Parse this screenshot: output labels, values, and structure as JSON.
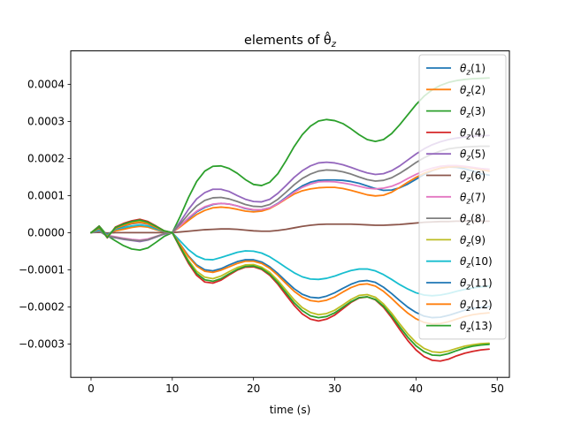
{
  "chart_data": {
    "type": "line",
    "title": "elements of θ̂_z",
    "xlabel": "time (s)",
    "ylabel": "",
    "xlim": [
      -2.5,
      51.5
    ],
    "ylim": [
      -0.00039,
      0.00049
    ],
    "xticks": [
      0,
      10,
      20,
      30,
      40,
      50
    ],
    "yticks": [
      -0.0003,
      -0.0002,
      -0.0001,
      0.0,
      0.0001,
      0.0002,
      0.0003,
      0.0004
    ],
    "ytick_labels": [
      "−0.0003",
      "−0.0002",
      "−0.0001",
      "0.0000",
      "0.0001",
      "0.0002",
      "0.0003",
      "0.0004"
    ],
    "grid": false,
    "legend_position": "upper right",
    "x": [
      0,
      1,
      2,
      3,
      4,
      5,
      6,
      7,
      8,
      9,
      10,
      11,
      12,
      13,
      14,
      15,
      16,
      17,
      18,
      19,
      20,
      21,
      22,
      23,
      24,
      25,
      26,
      27,
      28,
      29,
      30,
      31,
      32,
      33,
      34,
      35,
      36,
      37,
      38,
      39,
      40,
      41,
      42,
      43,
      44,
      45,
      46,
      47,
      48,
      49
    ],
    "series": [
      {
        "name": "θz(1)",
        "color": "#1f77b4",
        "values": [
          0,
          4e-06,
          -6e-06,
          6e-06,
          1e-05,
          1.5e-05,
          1.9e-05,
          1.6e-05,
          8e-06,
          2e-06,
          0,
          1.8e-05,
          3.8e-05,
          5.6e-05,
          6.8e-05,
          7.6e-05,
          7.9e-05,
          7.7e-05,
          7.2e-05,
          6.5e-05,
          6.1e-05,
          6.2e-05,
          6.7e-05,
          7.9e-05,
          9.5e-05,
          0.000112,
          0.000126,
          0.000136,
          0.000141,
          0.000142,
          0.000142,
          0.000141,
          0.000138,
          0.000133,
          0.000126,
          0.000119,
          0.000114,
          0.000115,
          0.000121,
          0.000131,
          0.000144,
          0.000157,
          0.000167,
          0.000174,
          0.000177,
          0.000176,
          0.000172,
          0.000166,
          0.000159,
          0.000155
        ]
      },
      {
        "name": "θz(2)",
        "color": "#ff7f0e",
        "values": [
          0,
          3e-06,
          -5e-06,
          5e-06,
          9e-06,
          1.4e-05,
          1.7e-05,
          1.5e-05,
          8e-06,
          2e-06,
          0,
          1.6e-05,
          3.3e-05,
          4.9e-05,
          6e-05,
          6.7e-05,
          6.9e-05,
          6.7e-05,
          6.3e-05,
          5.8e-05,
          5.6e-05,
          5.8e-05,
          6.5e-05,
          7.7e-05,
          9.1e-05,
          0.000104,
          0.000113,
          0.000118,
          0.000121,
          0.000122,
          0.000122,
          0.000119,
          0.000114,
          0.000108,
          0.000102,
          9.9e-05,
          0.000101,
          0.000109,
          0.000122,
          0.000136,
          0.000149,
          0.00016,
          0.000168,
          0.000174,
          0.000177,
          0.000178,
          0.000177,
          0.000174,
          0.00017,
          0.000166
        ]
      },
      {
        "name": "θz(3)",
        "color": "#2ca02c",
        "values": [
          0,
          1.8e-05,
          -8e-06,
          -2.2e-05,
          -3.5e-05,
          -4.4e-05,
          -4.7e-05,
          -4.1e-05,
          -2.6e-05,
          -1e-05,
          0,
          4.5e-05,
          9.5e-05,
          0.000138,
          0.000166,
          0.000179,
          0.00018,
          0.000173,
          0.00016,
          0.000143,
          0.00013,
          0.000127,
          0.000136,
          0.000159,
          0.000194,
          0.000232,
          0.000264,
          0.000287,
          0.000301,
          0.000305,
          0.000302,
          0.000294,
          0.00028,
          0.000264,
          0.000251,
          0.000246,
          0.000251,
          0.000267,
          0.000291,
          0.000318,
          0.000345,
          0.000368,
          0.000385,
          0.000397,
          0.000405,
          0.00041,
          0.000413,
          0.000415,
          0.000416,
          0.000417
        ]
      },
      {
        "name": "θz(4)",
        "color": "#d62728",
        "values": [
          0,
          1.6e-05,
          -1.4e-05,
          1.5e-05,
          2.5e-05,
          3.2e-05,
          3.6e-05,
          3e-05,
          1.8e-05,
          5e-06,
          0,
          -4.2e-05,
          -8.3e-05,
          -0.000115,
          -0.000133,
          -0.000136,
          -0.000128,
          -0.000114,
          -0.000101,
          -9.3e-05,
          -9.2e-05,
          -9.9e-05,
          -0.000115,
          -0.000139,
          -0.000168,
          -0.000196,
          -0.000219,
          -0.000233,
          -0.000238,
          -0.000233,
          -0.000222,
          -0.000205,
          -0.000188,
          -0.000176,
          -0.000173,
          -0.000181,
          -0.000201,
          -0.000229,
          -0.000261,
          -0.000291,
          -0.000316,
          -0.000334,
          -0.000344,
          -0.000346,
          -0.000341,
          -0.000332,
          -0.000325,
          -0.00032,
          -0.000316,
          -0.000314
        ]
      },
      {
        "name": "θz(5)",
        "color": "#9467bd",
        "values": [
          0,
          5e-06,
          -1e-05,
          -1.4e-05,
          -1.8e-05,
          -2.1e-05,
          -2.4e-05,
          -2e-05,
          -1.2e-05,
          -4e-06,
          0,
          3e-05,
          6.3e-05,
          9.1e-05,
          0.000108,
          0.000117,
          0.000117,
          0.000111,
          0.0001,
          9e-05,
          8.4e-05,
          8.3e-05,
          9e-05,
          0.000106,
          0.000127,
          0.000149,
          0.000167,
          0.00018,
          0.000188,
          0.00019,
          0.000188,
          0.000183,
          0.000176,
          0.000168,
          0.000161,
          0.000157,
          0.000159,
          0.000167,
          0.00018,
          0.000196,
          0.000212,
          0.000226,
          0.000237,
          0.000245,
          0.000251,
          0.000255,
          0.000258,
          0.00026,
          0.000261,
          0.000262
        ]
      },
      {
        "name": "θz(6)",
        "color": "#8c564b",
        "values": [
          0,
          1e-06,
          -1e-06,
          0,
          0,
          0,
          0,
          0,
          0,
          0,
          0,
          2e-06,
          4e-06,
          6e-06,
          8e-06,
          9e-06,
          1e-05,
          1e-05,
          9e-06,
          7e-06,
          5e-06,
          4e-06,
          4e-06,
          6e-06,
          9e-06,
          1.3e-05,
          1.7e-05,
          2e-05,
          2.2e-05,
          2.3e-05,
          2.3e-05,
          2.3e-05,
          2.3e-05,
          2.2e-05,
          2.1e-05,
          2e-05,
          2e-05,
          2.1e-05,
          2.2e-05,
          2.4e-05,
          2.6e-05,
          2.8e-05,
          2.9e-05,
          3e-05,
          3e-05,
          3.1e-05,
          3.1e-05,
          3.1e-05,
          3.1e-05,
          3.1e-05
        ]
      },
      {
        "name": "θz(7)",
        "color": "#e377c2",
        "values": [
          0,
          4e-06,
          -7e-06,
          -1.1e-05,
          -1.5e-05,
          -1.8e-05,
          -2e-05,
          -1.7e-05,
          -1e-05,
          -3e-06,
          0,
          1.9e-05,
          4e-05,
          5.8e-05,
          7e-05,
          7.7e-05,
          7.9e-05,
          7.7e-05,
          7.2e-05,
          6.6e-05,
          6.2e-05,
          6.2e-05,
          6.7e-05,
          7.8e-05,
          9.3e-05,
          0.000109,
          0.000122,
          0.000131,
          0.000137,
          0.000138,
          0.000137,
          0.000134,
          0.00013,
          0.000125,
          0.00012,
          0.000118,
          0.00012,
          0.000125,
          0.000134,
          0.000146,
          0.000157,
          0.000167,
          0.000174,
          0.000179,
          0.000181,
          0.000181,
          0.000179,
          0.000176,
          0.000173,
          0.000171
        ]
      },
      {
        "name": "θz(8)",
        "color": "#7f7f7f",
        "values": [
          0,
          4e-06,
          -9e-06,
          -1.3e-05,
          -1.7e-05,
          -2e-05,
          -2.2e-05,
          -1.9e-05,
          -1.1e-05,
          -3e-06,
          0,
          2.4e-05,
          5e-05,
          7.2e-05,
          8.7e-05,
          9.4e-05,
          9.5e-05,
          9.1e-05,
          8.4e-05,
          7.6e-05,
          7.1e-05,
          7e-05,
          7.6e-05,
          9e-05,
          0.000109,
          0.000129,
          0.000146,
          0.000158,
          0.000166,
          0.000169,
          0.000168,
          0.000164,
          0.000158,
          0.00015,
          0.000143,
          0.000139,
          0.000141,
          0.000148,
          0.00016,
          0.000174,
          0.000189,
          0.000202,
          0.000212,
          0.00022,
          0.000226,
          0.000229,
          0.000231,
          0.000232,
          0.000233,
          0.000233
        ]
      },
      {
        "name": "θz(9)",
        "color": "#bcbd22",
        "values": [
          0,
          1.4e-05,
          -1.2e-05,
          1.3e-05,
          2.2e-05,
          2.8e-05,
          3.2e-05,
          2.6e-05,
          1.6e-05,
          4e-06,
          0,
          -3.8e-05,
          -7.5e-05,
          -0.000104,
          -0.00012,
          -0.000124,
          -0.000117,
          -0.000105,
          -9.4e-05,
          -8.7e-05,
          -8.6e-05,
          -9.3e-05,
          -0.000107,
          -0.000129,
          -0.000155,
          -0.000181,
          -0.000202,
          -0.000215,
          -0.000221,
          -0.000218,
          -0.000209,
          -0.000195,
          -0.00018,
          -0.000169,
          -0.000167,
          -0.000174,
          -0.000192,
          -0.000217,
          -0.000246,
          -0.000273,
          -0.000296,
          -0.000312,
          -0.000321,
          -0.000323,
          -0.000319,
          -0.000312,
          -0.000306,
          -0.000302,
          -0.000299,
          -0.000298
        ]
      },
      {
        "name": "θz(10)",
        "color": "#17becf",
        "values": [
          0,
          8e-06,
          -6e-06,
          9e-06,
          1.4e-05,
          1.8e-05,
          2.1e-05,
          1.8e-05,
          1e-05,
          3e-06,
          0,
          -2.3e-05,
          -4.6e-05,
          -6.3e-05,
          -7.2e-05,
          -7.3e-05,
          -6.7e-05,
          -6e-05,
          -5.3e-05,
          -4.9e-05,
          -5e-05,
          -5.5e-05,
          -6.5e-05,
          -7.9e-05,
          -9.4e-05,
          -0.000108,
          -0.000119,
          -0.000125,
          -0.000126,
          -0.000123,
          -0.000117,
          -0.000109,
          -0.000102,
          -9.8e-05,
          -9.8e-05,
          -0.000103,
          -0.000113,
          -0.000126,
          -0.00014,
          -0.000152,
          -0.000162,
          -0.000168,
          -0.00017,
          -0.000168,
          -0.000164,
          -0.000158,
          -0.000153,
          -0.000149,
          -0.000146,
          -0.000144
        ]
      },
      {
        "name": "θz(11)",
        "color": "#1f77b4",
        "values": [
          0,
          1.1e-05,
          -9e-06,
          1.1e-05,
          1.8e-05,
          2.4e-05,
          2.7e-05,
          2.3e-05,
          1.3e-05,
          4e-06,
          0,
          -3.2e-05,
          -6.3e-05,
          -8.7e-05,
          -0.0001,
          -0.000103,
          -9.7e-05,
          -8.7e-05,
          -7.8e-05,
          -7.3e-05,
          -7.3e-05,
          -7.9e-05,
          -9.2e-05,
          -0.00011,
          -0.000131,
          -0.000151,
          -0.000166,
          -0.000174,
          -0.000176,
          -0.000171,
          -0.000162,
          -0.00015,
          -0.000139,
          -0.000131,
          -0.000129,
          -0.000134,
          -0.000147,
          -0.000164,
          -0.000183,
          -0.000201,
          -0.000215,
          -0.000225,
          -0.000229,
          -0.000228,
          -0.000223,
          -0.000216,
          -0.000209,
          -0.000204,
          -0.000201,
          -0.000199
        ]
      },
      {
        "name": "θz(12)",
        "color": "#ff7f0e",
        "values": [
          0,
          1.2e-05,
          -1e-05,
          1.2e-05,
          1.9e-05,
          2.5e-05,
          2.8e-05,
          2.4e-05,
          1.4e-05,
          4e-06,
          0,
          -3.3e-05,
          -6.5e-05,
          -9e-05,
          -0.000104,
          -0.000107,
          -0.000101,
          -9.2e-05,
          -8.3e-05,
          -7.7e-05,
          -7.7e-05,
          -8.3e-05,
          -9.6e-05,
          -0.000115,
          -0.000137,
          -0.000158,
          -0.000174,
          -0.000183,
          -0.000186,
          -0.000182,
          -0.000173,
          -0.00016,
          -0.000148,
          -0.00014,
          -0.000138,
          -0.000144,
          -0.000158,
          -0.000177,
          -0.000198,
          -0.000217,
          -0.000232,
          -0.000242,
          -0.000246,
          -0.000245,
          -0.00024,
          -0.000233,
          -0.000226,
          -0.000221,
          -0.000218,
          -0.000216
        ]
      },
      {
        "name": "θz(13)",
        "color": "#2ca02c",
        "values": [
          0,
          1.5e-05,
          -1.3e-05,
          1.4e-05,
          2.3e-05,
          3e-05,
          3.4e-05,
          2.8e-05,
          1.7e-05,
          5e-06,
          0,
          -4e-05,
          -7.9e-05,
          -0.00011,
          -0.000127,
          -0.000131,
          -0.000124,
          -0.000111,
          -9.9e-05,
          -9.1e-05,
          -9e-05,
          -9.7e-05,
          -0.000112,
          -0.000135,
          -0.000162,
          -0.000189,
          -0.00021,
          -0.000224,
          -0.000229,
          -0.000226,
          -0.000216,
          -0.000201,
          -0.000186,
          -0.000175,
          -0.000173,
          -0.00018,
          -0.000198,
          -0.000224,
          -0.000254,
          -0.000282,
          -0.000305,
          -0.000321,
          -0.00033,
          -0.000331,
          -0.000326,
          -0.000318,
          -0.000311,
          -0.000306,
          -0.000303,
          -0.000301
        ]
      }
    ]
  }
}
